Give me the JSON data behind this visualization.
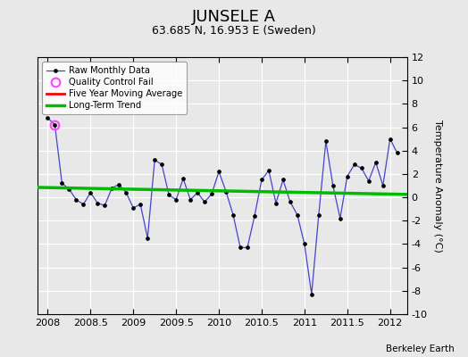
{
  "title": "JUNSELE A",
  "subtitle": "63.685 N, 16.953 E (Sweden)",
  "ylabel": "Temperature Anomaly (°C)",
  "credit": "Berkeley Earth",
  "ylim": [
    -10,
    12
  ],
  "xlim": [
    2007.88,
    2012.2
  ],
  "background_color": "#e8e8e8",
  "plot_bg_color": "#e8e8e8",
  "raw_x": [
    2008.0,
    2008.0833,
    2008.1667,
    2008.25,
    2008.3333,
    2008.4167,
    2008.5,
    2008.5833,
    2008.6667,
    2008.75,
    2008.8333,
    2008.9167,
    2009.0,
    2009.0833,
    2009.1667,
    2009.25,
    2009.3333,
    2009.4167,
    2009.5,
    2009.5833,
    2009.6667,
    2009.75,
    2009.8333,
    2009.9167,
    2010.0,
    2010.0833,
    2010.1667,
    2010.25,
    2010.3333,
    2010.4167,
    2010.5,
    2010.5833,
    2010.6667,
    2010.75,
    2010.8333,
    2010.9167,
    2011.0,
    2011.0833,
    2011.1667,
    2011.25,
    2011.3333,
    2011.4167,
    2011.5,
    2011.5833,
    2011.6667,
    2011.75,
    2011.8333,
    2011.9167,
    2012.0,
    2012.0833
  ],
  "raw_y": [
    6.8,
    6.2,
    1.2,
    0.7,
    -0.2,
    -0.6,
    0.4,
    -0.5,
    -0.7,
    0.8,
    1.1,
    0.4,
    -0.9,
    -0.6,
    -3.5,
    3.2,
    2.8,
    0.2,
    -0.2,
    1.6,
    -0.2,
    0.4,
    -0.4,
    0.3,
    2.2,
    0.5,
    -1.5,
    -4.3,
    -4.3,
    -1.6,
    1.5,
    2.3,
    -0.5,
    1.5,
    -0.4,
    -1.5,
    -4.0,
    -8.3,
    -1.5,
    4.8,
    1.0,
    -1.8,
    1.8,
    2.8,
    2.5,
    1.4,
    3.0,
    1.0,
    5.0,
    3.8
  ],
  "qc_fail_x": [
    2008.0833
  ],
  "qc_fail_y": [
    6.2
  ],
  "trend_x": [
    2007.88,
    2012.2
  ],
  "trend_y": [
    0.85,
    0.25
  ],
  "moving_avg_x": [],
  "moving_avg_y": [],
  "raw_line_color": "#4444cc",
  "marker_color": "#000000",
  "qc_color": "#ff44ff",
  "moving_avg_color": "#ff0000",
  "trend_color": "#00bb00",
  "trend_linewidth": 2.5,
  "xticks": [
    2008,
    2008.5,
    2009,
    2009.5,
    2010,
    2010.5,
    2011,
    2011.5,
    2012
  ],
  "xtick_labels": [
    "2008",
    "2008.5",
    "2009",
    "2009.5",
    "2010",
    "2010.5",
    "2011",
    "2011.5",
    "2012"
  ],
  "yticks": [
    -10,
    -8,
    -6,
    -4,
    -2,
    0,
    2,
    4,
    6,
    8,
    10,
    12
  ],
  "title_fontsize": 13,
  "subtitle_fontsize": 9,
  "tick_fontsize": 8,
  "ylabel_fontsize": 8
}
